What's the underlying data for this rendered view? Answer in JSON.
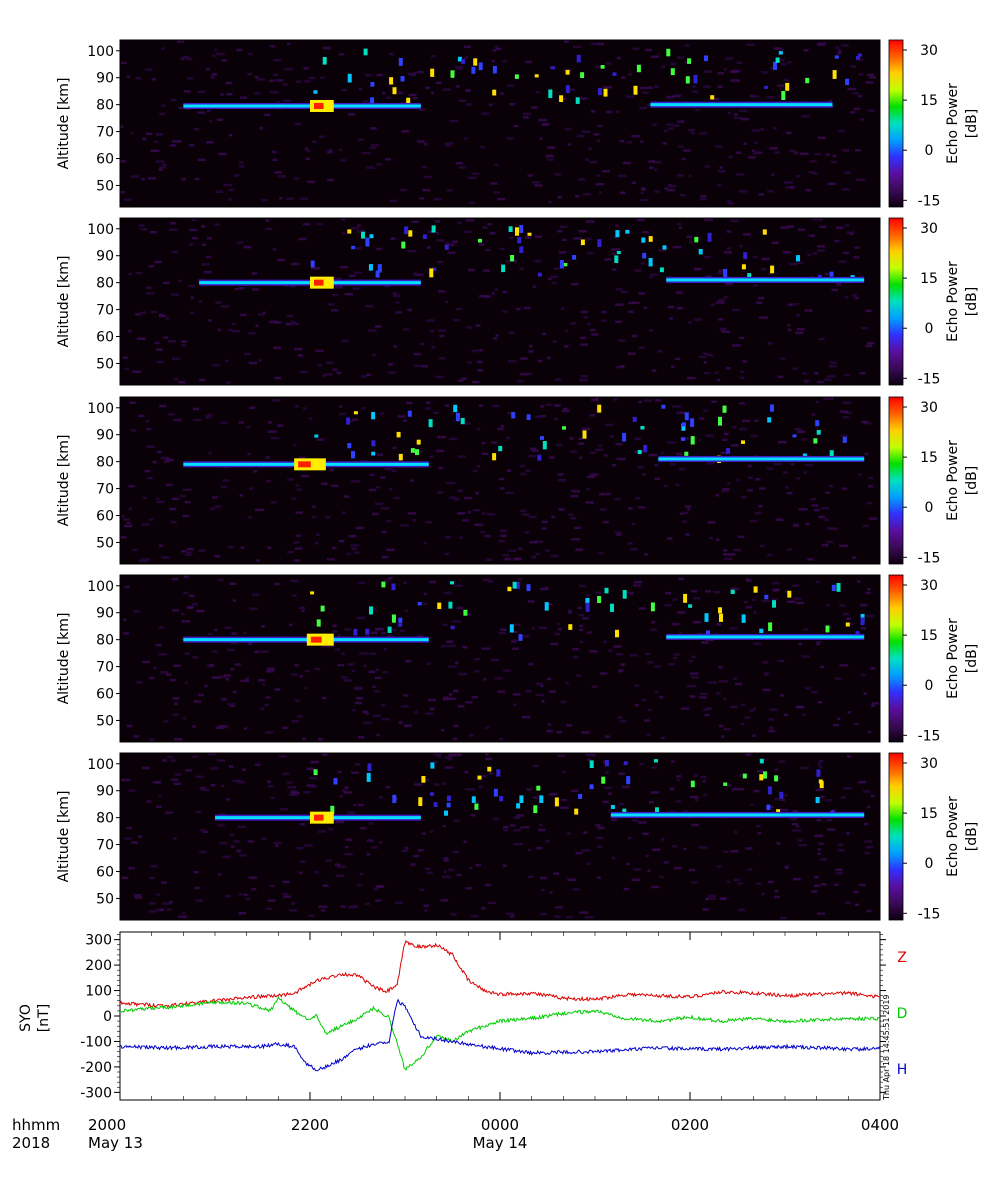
{
  "colors": {
    "background": "#ffffff",
    "panel_background": "#0a0008",
    "echo_layer_weak": "#3f20c8",
    "echo_layer_mid": "#00e0ff",
    "echo_layer_strong": "#ffee00",
    "echo_layer_peak": "#ff2000",
    "Z_color": "#dd0000",
    "D_color": "#00cc00",
    "H_color": "#0000cc",
    "colorbar": [
      "#0c0010",
      "#3a0a55",
      "#5a0fa0",
      "#3030ff",
      "#00a0ff",
      "#00e0c0",
      "#00e000",
      "#c0ff00",
      "#ffd000",
      "#ff6000",
      "#ff0000"
    ]
  },
  "chart_data": [
    {
      "type": "heatmap",
      "panel": 1,
      "ylabel": "Altitude [km]",
      "yticks": [
        50,
        60,
        70,
        80,
        90,
        100
      ],
      "ylim": [
        42,
        104
      ],
      "xlim": [
        0,
        480
      ],
      "layer_segments": [
        {
          "start": 40,
          "end": 190,
          "altitude": 79.5,
          "peak_start": 120,
          "peak_end": 135
        },
        {
          "start": 335,
          "end": 450,
          "altitude": 80
        }
      ],
      "colorbar": {
        "label": "Echo Power [dB]",
        "ticks": [
          30,
          15,
          0,
          -15
        ],
        "range": [
          -17,
          33
        ]
      }
    },
    {
      "type": "heatmap",
      "panel": 2,
      "ylabel": "Altitude [km]",
      "yticks": [
        50,
        60,
        70,
        80,
        90,
        100
      ],
      "ylim": [
        42,
        104
      ],
      "xlim": [
        0,
        480
      ],
      "layer_segments": [
        {
          "start": 50,
          "end": 190,
          "altitude": 80,
          "peak_start": 120,
          "peak_end": 135
        },
        {
          "start": 345,
          "end": 470,
          "altitude": 81
        }
      ],
      "colorbar": {
        "label": "Echo Power [dB]",
        "ticks": [
          30,
          15,
          0,
          -15
        ],
        "range": [
          -17,
          33
        ]
      }
    },
    {
      "type": "heatmap",
      "panel": 3,
      "ylabel": "Altitude [km]",
      "yticks": [
        50,
        60,
        70,
        80,
        90,
        100
      ],
      "ylim": [
        42,
        104
      ],
      "xlim": [
        0,
        480
      ],
      "layer_segments": [
        {
          "start": 40,
          "end": 195,
          "altitude": 79,
          "peak_start": 110,
          "peak_end": 130
        },
        {
          "start": 340,
          "end": 470,
          "altitude": 81
        }
      ],
      "colorbar": {
        "label": "Echo Power [dB]",
        "ticks": [
          30,
          15,
          0,
          -15
        ],
        "range": [
          -17,
          33
        ]
      }
    },
    {
      "type": "heatmap",
      "panel": 4,
      "ylabel": "Altitude [km]",
      "yticks": [
        50,
        60,
        70,
        80,
        90,
        100
      ],
      "ylim": [
        42,
        104
      ],
      "xlim": [
        0,
        480
      ],
      "layer_segments": [
        {
          "start": 40,
          "end": 195,
          "altitude": 80,
          "peak_start": 118,
          "peak_end": 135
        },
        {
          "start": 345,
          "end": 470,
          "altitude": 81
        }
      ],
      "colorbar": {
        "label": "Echo Power [dB]",
        "ticks": [
          30,
          15,
          0,
          -15
        ],
        "range": [
          -17,
          33
        ]
      }
    },
    {
      "type": "heatmap",
      "panel": 5,
      "ylabel": "Altitude [km]",
      "yticks": [
        50,
        60,
        70,
        80,
        90,
        100
      ],
      "ylim": [
        42,
        104
      ],
      "xlim": [
        0,
        480
      ],
      "layer_segments": [
        {
          "start": 60,
          "end": 190,
          "altitude": 80,
          "peak_start": 120,
          "peak_end": 135
        },
        {
          "start": 310,
          "end": 470,
          "altitude": 81
        }
      ],
      "colorbar": {
        "label": "Echo Power [dB]",
        "ticks": [
          30,
          15,
          0,
          -15
        ],
        "range": [
          -17,
          33
        ]
      }
    },
    {
      "type": "line",
      "ylabel": "SYO [nT]",
      "yticks": [
        300,
        200,
        100,
        0,
        -100,
        -200,
        -300
      ],
      "ylim": [
        -330,
        330
      ],
      "xlim": [
        0,
        480
      ],
      "series": [
        {
          "name": "Z",
          "x": [
            0,
            30,
            60,
            85,
            100,
            110,
            125,
            140,
            150,
            160,
            168,
            175,
            180,
            190,
            200,
            210,
            220,
            230,
            240,
            260,
            280,
            300,
            320,
            340,
            360,
            380,
            400,
            420,
            440,
            460,
            480
          ],
          "y": [
            50,
            40,
            60,
            75,
            80,
            90,
            140,
            165,
            160,
            115,
            95,
            120,
            290,
            270,
            280,
            240,
            140,
            100,
            85,
            90,
            70,
            65,
            85,
            80,
            75,
            95,
            90,
            80,
            85,
            90,
            75
          ]
        },
        {
          "name": "D",
          "x": [
            0,
            30,
            60,
            80,
            95,
            100,
            110,
            118,
            124,
            130,
            140,
            150,
            160,
            170,
            180,
            190,
            200,
            210,
            220,
            240,
            260,
            280,
            300,
            320,
            340,
            360,
            380,
            400,
            420,
            440,
            460,
            480
          ],
          "y": [
            20,
            35,
            55,
            50,
            20,
            70,
            20,
            -10,
            0,
            -70,
            -40,
            -10,
            30,
            -5,
            -210,
            -160,
            -80,
            -100,
            -60,
            -20,
            -10,
            10,
            20,
            -10,
            -20,
            -5,
            -20,
            -10,
            -20,
            -15,
            -10,
            -10
          ]
        },
        {
          "name": "H",
          "x": [
            0,
            30,
            60,
            90,
            100,
            110,
            118,
            124,
            130,
            140,
            150,
            160,
            170,
            175,
            180,
            190,
            200,
            210,
            220,
            230,
            260,
            300,
            340,
            360,
            380,
            400,
            420,
            440,
            460,
            480
          ],
          "y": [
            -120,
            -125,
            -120,
            -120,
            -110,
            -120,
            -190,
            -210,
            -200,
            -170,
            -130,
            -110,
            -100,
            60,
            40,
            -80,
            -90,
            -100,
            -110,
            -120,
            -145,
            -140,
            -125,
            -130,
            -130,
            -125,
            -120,
            -125,
            -130,
            -130
          ]
        }
      ],
      "series_labels": [
        "Z",
        "D",
        "H"
      ]
    }
  ],
  "xaxis": {
    "row_labels": [
      "hhmm",
      "2018"
    ],
    "ticks": [
      {
        "x": 0,
        "time": "2000",
        "date": "May 13"
      },
      {
        "x": 120,
        "time": "2200",
        "date": ""
      },
      {
        "x": 240,
        "time": "0000",
        "date": "May 14"
      },
      {
        "x": 360,
        "time": "0200",
        "date": ""
      },
      {
        "x": 480,
        "time": "0400",
        "date": ""
      }
    ]
  },
  "timestamp": "Thu Apr 18 14:45:51 2019"
}
